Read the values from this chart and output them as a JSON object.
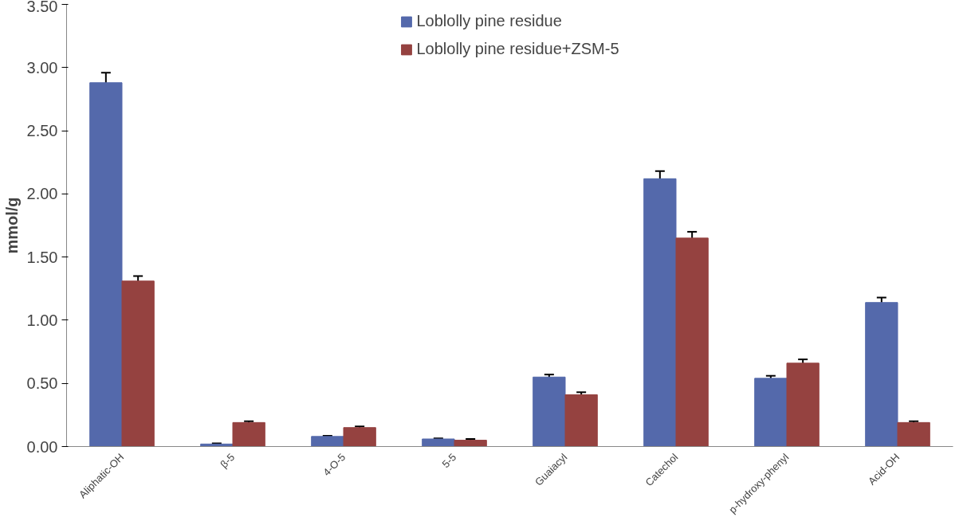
{
  "chart_data": {
    "type": "bar",
    "ylabel": "mmol/g",
    "categories": [
      "Aliphatic-OH",
      "β-5",
      "4-O-5",
      "5-5",
      "Guaiacyl",
      "Catechol",
      "p-hydroxy-phenyl",
      "Acid-OH"
    ],
    "series": [
      {
        "name": "Loblolly pine residue",
        "color": "#5469ab",
        "values": [
          2.88,
          0.02,
          0.08,
          0.06,
          0.55,
          2.12,
          0.54,
          1.14
        ],
        "errors": [
          0.08,
          0.005,
          0.005,
          0.005,
          0.02,
          0.06,
          0.02,
          0.04
        ]
      },
      {
        "name": "Loblolly pine residue+ZSM-5",
        "color": "#954240",
        "values": [
          1.31,
          0.19,
          0.15,
          0.05,
          0.41,
          1.65,
          0.66,
          0.19
        ],
        "errors": [
          0.04,
          0.01,
          0.01,
          0.01,
          0.02,
          0.05,
          0.03,
          0.01
        ]
      }
    ],
    "ylim": [
      0,
      3.5
    ],
    "yticks": [
      {
        "value": 0,
        "label": "0.00"
      },
      {
        "value": 0.5,
        "label": "0.50"
      },
      {
        "value": 1,
        "label": "1.00"
      },
      {
        "value": 1.5,
        "label": "1.50"
      },
      {
        "value": 2,
        "label": "2.00"
      },
      {
        "value": 2.5,
        "label": "2.50"
      },
      {
        "value": 3,
        "label": "3.00"
      },
      {
        "value": 3.5,
        "label": "3.50"
      }
    ],
    "grid": false,
    "legend": "top"
  }
}
